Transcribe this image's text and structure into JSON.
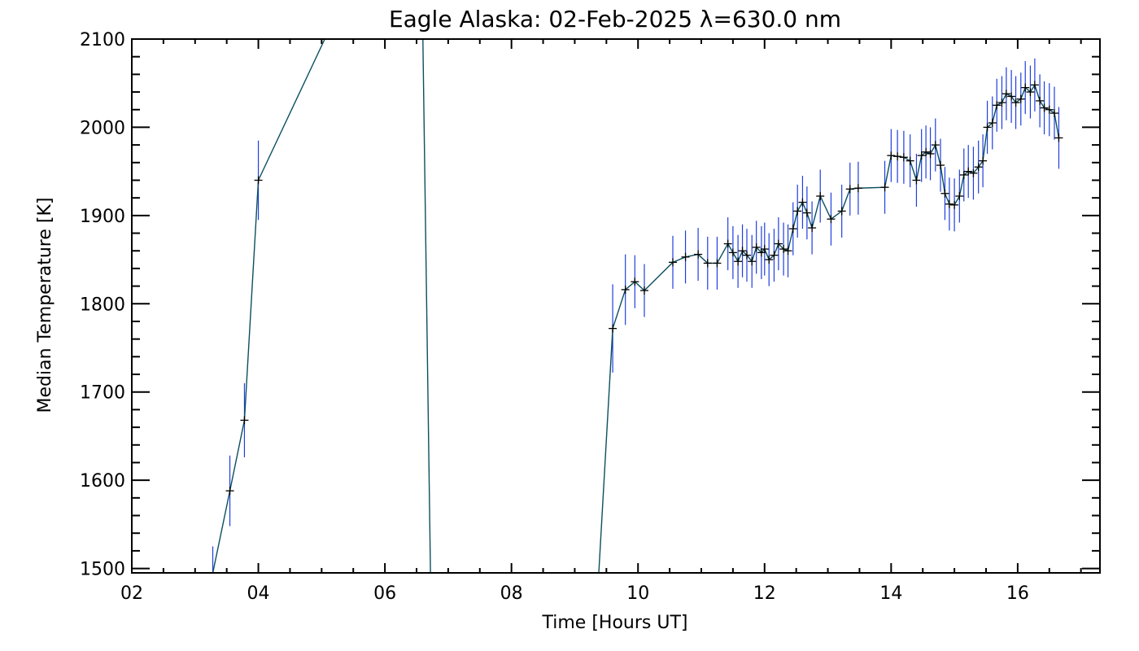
{
  "chart_data": {
    "type": "line",
    "title": "Eagle Alaska: 02-Feb-2025 λ=630.0 nm",
    "xlabel": "Time [Hours UT]",
    "ylabel": "Median Temperature [K]",
    "xlim": [
      2,
      17.3
    ],
    "ylim": [
      1495,
      2100
    ],
    "x_ticks": [
      2,
      4,
      6,
      8,
      10,
      12,
      14,
      16
    ],
    "x_tick_labels": [
      "02",
      "04",
      "06",
      "08",
      "10",
      "12",
      "14",
      "16"
    ],
    "y_ticks": [
      1500,
      1600,
      1700,
      1800,
      1900,
      2000,
      2100
    ],
    "y_tick_labels": [
      "1500",
      "1600",
      "1700",
      "1800",
      "1900",
      "2000",
      "2100"
    ],
    "line_color": "#0b4f5f",
    "errorbar_color": "#1f3fe0",
    "marker_color": "#000000",
    "series": [
      {
        "x": [
          3.28,
          3.55,
          3.78,
          4.0,
          5.05,
          6.6,
          6.72,
          9.38,
          9.6,
          9.8,
          9.95,
          10.1,
          10.55,
          10.75,
          10.95,
          11.1,
          11.25,
          11.42,
          11.5,
          11.58,
          11.65,
          11.72,
          11.8,
          11.87,
          11.95,
          12.0,
          12.07,
          12.15,
          12.22,
          12.3,
          12.37,
          12.45,
          12.52,
          12.6,
          12.67,
          12.75,
          12.88,
          13.05,
          13.22,
          13.35,
          13.48,
          13.9,
          14.0,
          14.1,
          14.2,
          14.3,
          14.4,
          14.48,
          14.55,
          14.62,
          14.7,
          14.78,
          14.85,
          14.92,
          15.0,
          15.08,
          15.15,
          15.22,
          15.3,
          15.38,
          15.45,
          15.52,
          15.6,
          15.67,
          15.75,
          15.82,
          15.9,
          15.97,
          16.05,
          16.12,
          16.2,
          16.27,
          16.35,
          16.42,
          16.5,
          16.58,
          16.65
        ],
        "y": [
          1495,
          1588,
          1668,
          1940,
          2100,
          2100,
          1495,
          1495,
          1772,
          1816,
          1825,
          1815,
          1847,
          1853,
          1856,
          1846,
          1846,
          1868,
          1858,
          1848,
          1860,
          1855,
          1848,
          1864,
          1858,
          1862,
          1850,
          1855,
          1868,
          1862,
          1860,
          1885,
          1905,
          1915,
          1903,
          1886,
          1922,
          1896,
          1905,
          1930,
          1931,
          1932,
          1968,
          1967,
          1966,
          1962,
          1940,
          1968,
          1972,
          1970,
          1980,
          1957,
          1925,
          1913,
          1912,
          1922,
          1946,
          1950,
          1948,
          1955,
          1962,
          2000,
          2005,
          2025,
          2028,
          2038,
          2035,
          2028,
          2032,
          2045,
          2040,
          2048,
          2030,
          2022,
          2020,
          2016,
          1988
        ],
        "yerr": [
          30,
          40,
          42,
          45,
          0,
          0,
          0,
          0,
          50,
          40,
          30,
          30,
          30,
          30,
          30,
          30,
          30,
          30,
          30,
          30,
          30,
          30,
          30,
          30,
          30,
          30,
          30,
          30,
          30,
          30,
          30,
          30,
          30,
          30,
          30,
          30,
          30,
          30,
          30,
          30,
          30,
          30,
          30,
          30,
          30,
          30,
          30,
          30,
          30,
          30,
          30,
          30,
          30,
          30,
          30,
          30,
          30,
          30,
          30,
          30,
          30,
          30,
          30,
          30,
          30,
          30,
          30,
          30,
          30,
          30,
          30,
          30,
          30,
          30,
          30,
          30,
          35
        ],
        "markers": [
          false,
          true,
          true,
          true,
          false,
          false,
          false,
          false,
          true,
          true,
          true,
          true,
          true,
          true,
          true,
          true,
          true,
          true,
          true,
          true,
          true,
          true,
          true,
          true,
          true,
          true,
          true,
          true,
          true,
          true,
          true,
          true,
          true,
          true,
          true,
          true,
          true,
          true,
          true,
          true,
          true,
          true,
          true,
          true,
          true,
          true,
          true,
          true,
          true,
          true,
          true,
          true,
          true,
          true,
          true,
          true,
          true,
          true,
          true,
          true,
          true,
          true,
          true,
          true,
          true,
          true,
          true,
          true,
          true,
          true,
          true,
          true,
          true,
          true,
          true,
          true,
          true
        ]
      }
    ]
  }
}
